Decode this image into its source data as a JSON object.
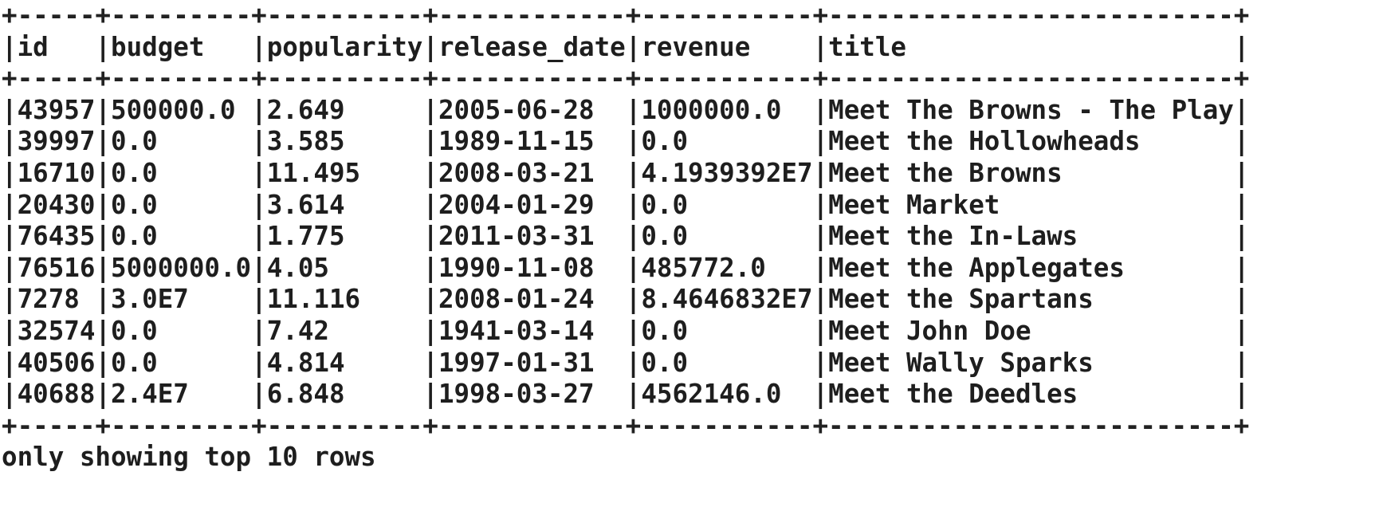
{
  "table": {
    "columns": [
      "id",
      "budget",
      "popularity",
      "release_date",
      "revenue",
      "title"
    ],
    "widths": [
      5,
      9,
      10,
      12,
      11,
      26
    ],
    "rows": [
      [
        "43957",
        "500000.0",
        "2.649",
        "2005-06-28",
        "1000000.0",
        "Meet The Browns - The Play"
      ],
      [
        "39997",
        "0.0",
        "3.585",
        "1989-11-15",
        "0.0",
        "Meet the Hollowheads"
      ],
      [
        "16710",
        "0.0",
        "11.495",
        "2008-03-21",
        "4.1939392E7",
        "Meet the Browns"
      ],
      [
        "20430",
        "0.0",
        "3.614",
        "2004-01-29",
        "0.0",
        "Meet Market"
      ],
      [
        "76435",
        "0.0",
        "1.775",
        "2011-03-31",
        "0.0",
        "Meet the In-Laws"
      ],
      [
        "76516",
        "5000000.0",
        "4.05",
        "1990-11-08",
        "485772.0",
        "Meet the Applegates"
      ],
      [
        "7278",
        "3.0E7",
        "11.116",
        "2008-01-24",
        "8.4646832E7",
        "Meet the Spartans"
      ],
      [
        "32574",
        "0.0",
        "7.42",
        "1941-03-14",
        "0.0",
        "Meet John Doe"
      ],
      [
        "40506",
        "0.0",
        "4.814",
        "1997-01-31",
        "0.0",
        "Meet Wally Sparks"
      ],
      [
        "40688",
        "2.4E7",
        "6.848",
        "1998-03-27",
        "4562146.0",
        "Meet the Deedles"
      ]
    ]
  },
  "footer": "only showing top 10 rows"
}
